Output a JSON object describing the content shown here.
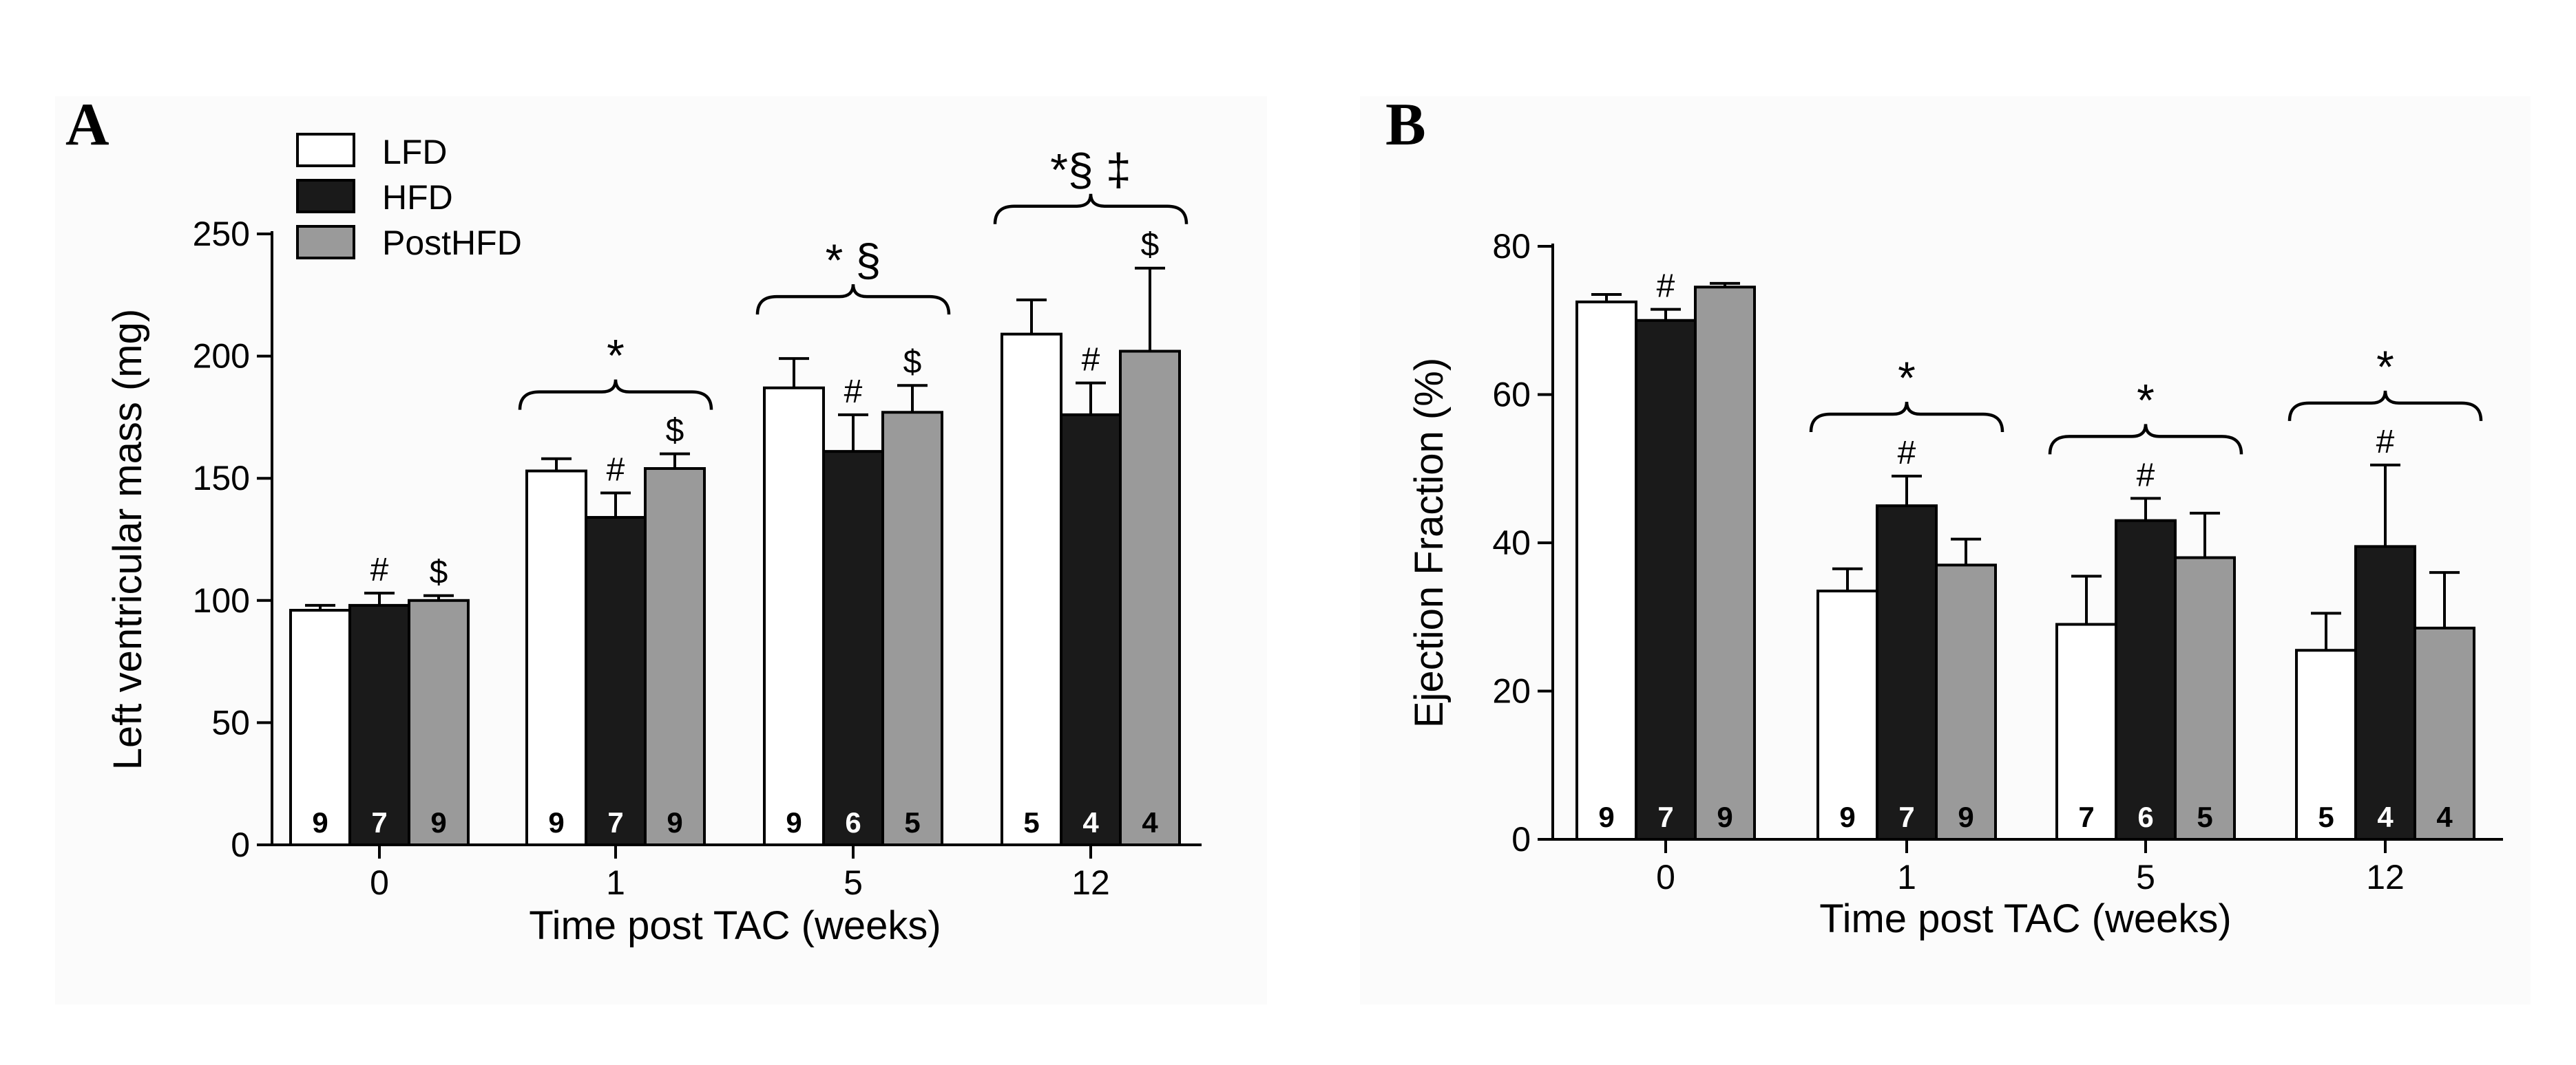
{
  "colors": {
    "LFD": "#ffffff",
    "HFD": "#1a1a1a",
    "PostHFD": "#9a9a9a",
    "stroke": "#000000"
  },
  "legend": [
    {
      "label": "LFD",
      "color": "#ffffff"
    },
    {
      "label": "HFD",
      "color": "#1a1a1a"
    },
    {
      "label": "PostHFD",
      "color": "#9a9a9a"
    }
  ],
  "chart_data": [
    {
      "panel": "A",
      "type": "bar",
      "xlabel": "Time post TAC (weeks)",
      "ylabel": "Left ventricular mass (mg)",
      "ylim": [
        0,
        250
      ],
      "yticks": [
        0,
        50,
        100,
        150,
        200,
        250
      ],
      "categories": [
        "0",
        "1",
        "5",
        "12"
      ],
      "series": [
        {
          "name": "LFD",
          "values": [
            96,
            153,
            187,
            209
          ],
          "errors": [
            2,
            5,
            12,
            14
          ],
          "n": [
            "9",
            "9",
            "9",
            "5"
          ],
          "marks": [
            "",
            "",
            "",
            ""
          ]
        },
        {
          "name": "HFD",
          "values": [
            98,
            134,
            161,
            176
          ],
          "errors": [
            5,
            10,
            15,
            13
          ],
          "n": [
            "7",
            "7",
            "6",
            "4"
          ],
          "marks": [
            "#",
            "#",
            "#",
            "#"
          ]
        },
        {
          "name": "PostHFD",
          "values": [
            100,
            154,
            177,
            202
          ],
          "errors": [
            2,
            6,
            11,
            34
          ],
          "n": [
            "9",
            "9",
            "5",
            "4"
          ],
          "marks": [
            "$",
            "$",
            "$",
            "$"
          ]
        }
      ],
      "group_annotations": [
        "",
        "*",
        "* §",
        "*§ ‡"
      ]
    },
    {
      "panel": "B",
      "type": "bar",
      "xlabel": "Time post TAC (weeks)",
      "ylabel": "Ejection Fraction (%)",
      "ylim": [
        0,
        80
      ],
      "yticks": [
        0,
        20,
        40,
        60,
        80
      ],
      "categories": [
        "0",
        "1",
        "5",
        "12"
      ],
      "series": [
        {
          "name": "LFD",
          "values": [
            72.5,
            33.5,
            29,
            25.5
          ],
          "errors": [
            1,
            3,
            6.5,
            5
          ],
          "n": [
            "9",
            "9",
            "7",
            "5"
          ],
          "marks": [
            "",
            "",
            "",
            ""
          ]
        },
        {
          "name": "HFD",
          "values": [
            70,
            45,
            43,
            39.5
          ],
          "errors": [
            1.5,
            4,
            3,
            11
          ],
          "n": [
            "7",
            "7",
            "6",
            "4"
          ],
          "marks": [
            "#",
            "#",
            "#",
            "#"
          ]
        },
        {
          "name": "PostHFD",
          "values": [
            74.5,
            37,
            38,
            28.5
          ],
          "errors": [
            0.5,
            3.5,
            6,
            7.5
          ],
          "n": [
            "9",
            "9",
            "5",
            "4"
          ],
          "marks": [
            "",
            "",
            "",
            ""
          ]
        }
      ],
      "group_annotations": [
        "",
        "*",
        "*",
        "*"
      ]
    }
  ]
}
